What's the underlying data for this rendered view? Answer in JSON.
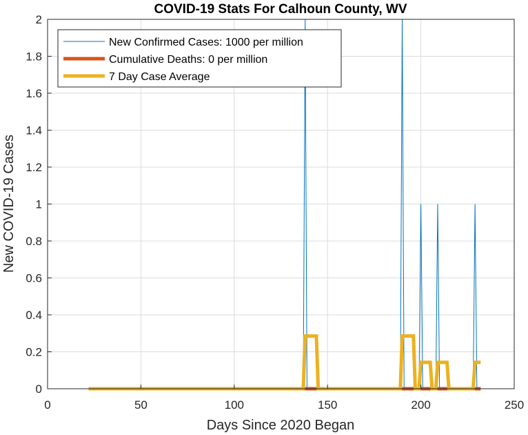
{
  "chart_data": {
    "type": "line",
    "title": "COVID-19 Stats For Calhoun County, WV",
    "xlabel": "Days Since 2020 Began",
    "ylabel": "New COVID-19 Cases",
    "xlim": [
      0,
      250
    ],
    "ylim": [
      0,
      2
    ],
    "xticks": [
      0,
      50,
      100,
      150,
      200,
      250
    ],
    "yticks": [
      0,
      0.2,
      0.4,
      0.6,
      0.8,
      1,
      1.2,
      1.4,
      1.6,
      1.8,
      2
    ],
    "ytick_labels": [
      "0",
      "0.2",
      "0.4",
      "0.6",
      "0.8",
      "1",
      "1.2",
      "1.4",
      "1.6",
      "1.8",
      "2"
    ],
    "grid": true,
    "legend_location": "top-left",
    "series": [
      {
        "name": "New Confirmed Cases: 1000 per million",
        "color": "#0072BD",
        "x": [
          22,
          137,
          138,
          139,
          189,
          190,
          191,
          199,
          200,
          201,
          208,
          209,
          210,
          228,
          229,
          230,
          232
        ],
        "y": [
          0,
          0,
          2,
          0,
          0,
          2,
          0,
          0,
          1,
          0,
          0,
          1,
          0,
          0,
          1,
          0,
          0
        ]
      },
      {
        "name": "Cumulative Deaths: 0 per million",
        "color": "#D95319",
        "x": [
          22,
          232
        ],
        "y": [
          0,
          0
        ]
      },
      {
        "name": "7 Day Case Average",
        "color": "#EDB120",
        "x": [
          22,
          137,
          138,
          144,
          145,
          189,
          190,
          196,
          197,
          199,
          200,
          205,
          206,
          208,
          209,
          214,
          215,
          228,
          229,
          232
        ],
        "y": [
          0,
          0,
          0.2857,
          0.2857,
          0,
          0,
          0.2857,
          0.2857,
          0,
          0,
          0.1429,
          0.1429,
          0,
          0,
          0.1429,
          0.1429,
          0,
          0,
          0.1429,
          0.1429
        ]
      }
    ]
  }
}
